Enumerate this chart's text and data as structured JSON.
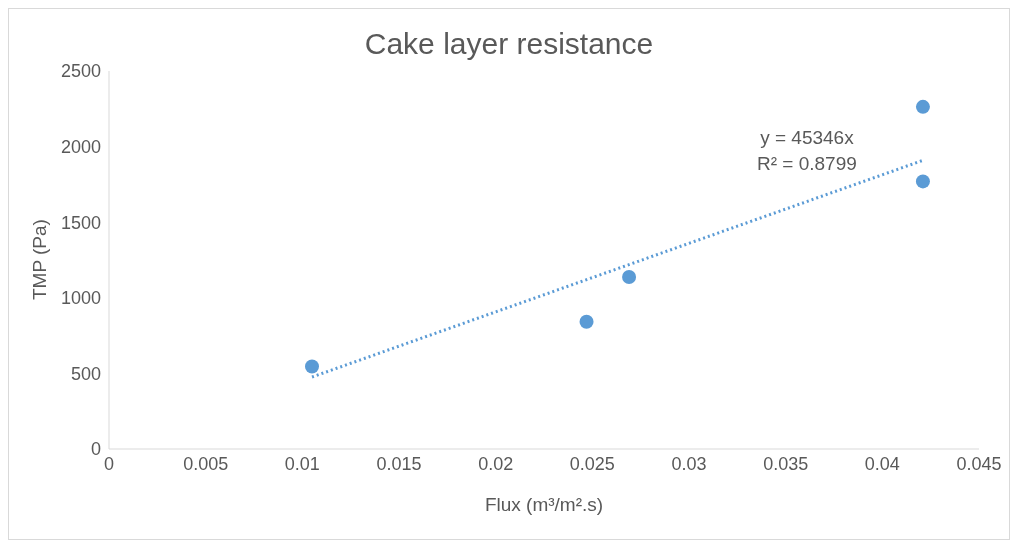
{
  "chart_data": {
    "type": "scatter",
    "title": "Cake layer resistance",
    "xlabel": "Flux (m³/m².s)",
    "ylabel": "TMP (Pa)",
    "xlim": [
      0,
      0.045
    ],
    "xticks": [
      0,
      0.005,
      0.01,
      0.015,
      0.02,
      0.025,
      0.03,
      0.035,
      0.04,
      0.045
    ],
    "ylim": [
      0,
      2500
    ],
    "yticks": [
      0,
      500,
      1000,
      1500,
      2000,
      2500
    ],
    "marker": "circle",
    "series": [
      {
        "type": "scatter",
        "color": "#5b9bd5",
        "x": [
          0.0105,
          0.0247,
          0.0269,
          0.0421,
          0.0421
        ],
        "values": [
          546,
          842,
          1138,
          2263,
          1770
        ]
      },
      {
        "type": "line",
        "color": "#5b9bd5",
        "line_style": "dotted",
        "marker": "none",
        "x": [
          0.0105,
          0.0421
        ],
        "values": [
          476,
          1909
        ]
      }
    ],
    "annotations": [
      "y = 45346x",
      "R² = 0.8799"
    ]
  }
}
